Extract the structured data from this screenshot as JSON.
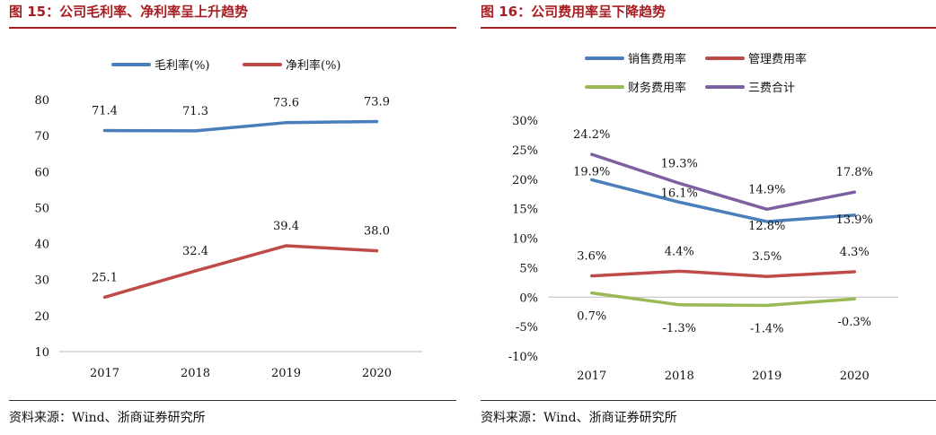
{
  "panels": [
    {
      "title": "图 15：公司毛利率、净利率呈上升趋势",
      "source": "资料来源：Wind、浙商证券研究所",
      "chart_data": {
        "type": "line",
        "title": "公司毛利率、净利率呈上升趋势",
        "categories": [
          "2017",
          "2018",
          "2019",
          "2020"
        ],
        "y_ticks": [
          "80",
          "70",
          "60",
          "50",
          "40",
          "30",
          "20",
          "10"
        ],
        "ylim": [
          10,
          80
        ],
        "grid": false,
        "legend_position": "top",
        "series": [
          {
            "name": "毛利率(%)",
            "color": "#4a7ebb",
            "values": [
              71.4,
              71.3,
              73.6,
              73.9
            ],
            "labels": [
              "71.4",
              "71.3",
              "73.6",
              "73.9"
            ]
          },
          {
            "name": "净利率(%)",
            "color": "#be4b48",
            "values": [
              25.1,
              32.4,
              39.4,
              38.0
            ],
            "labels": [
              "25.1",
              "32.4",
              "39.4",
              "38.0"
            ]
          }
        ]
      }
    },
    {
      "title": "图 16：公司费用率呈下降趋势",
      "source": "资料来源：Wind、浙商证券研究所",
      "chart_data": {
        "type": "line",
        "title": "公司费用率呈下降趋势",
        "categories": [
          "2017",
          "2018",
          "2019",
          "2020"
        ],
        "y_ticks": [
          "30%",
          "25%",
          "20%",
          "15%",
          "10%",
          "5%",
          "0%",
          "-5%",
          "-10%"
        ],
        "ylim": [
          -10,
          30
        ],
        "grid": false,
        "legend_position": "top",
        "series": [
          {
            "name": "销售费用率",
            "color": "#4a7ebb",
            "values": [
              19.9,
              16.1,
              12.8,
              13.9
            ],
            "labels": [
              "19.9%",
              "16.1%",
              "12.8%",
              "13.9%"
            ]
          },
          {
            "name": "管理费用率",
            "color": "#be4b48",
            "values": [
              3.6,
              4.4,
              3.5,
              4.3
            ],
            "labels": [
              "3.6%",
              "4.4%",
              "3.5%",
              "4.3%"
            ]
          },
          {
            "name": "财务费用率",
            "color": "#98b954",
            "values": [
              0.7,
              -1.3,
              -1.4,
              -0.3
            ],
            "labels": [
              "0.7%",
              "-1.3%",
              "-1.4%",
              "-0.3%"
            ]
          },
          {
            "name": "三费合计",
            "color": "#7d60a0",
            "values": [
              24.2,
              19.3,
              14.9,
              17.8
            ],
            "labels": [
              "24.2%",
              "19.3%",
              "14.9%",
              "17.8%"
            ]
          }
        ]
      }
    }
  ]
}
